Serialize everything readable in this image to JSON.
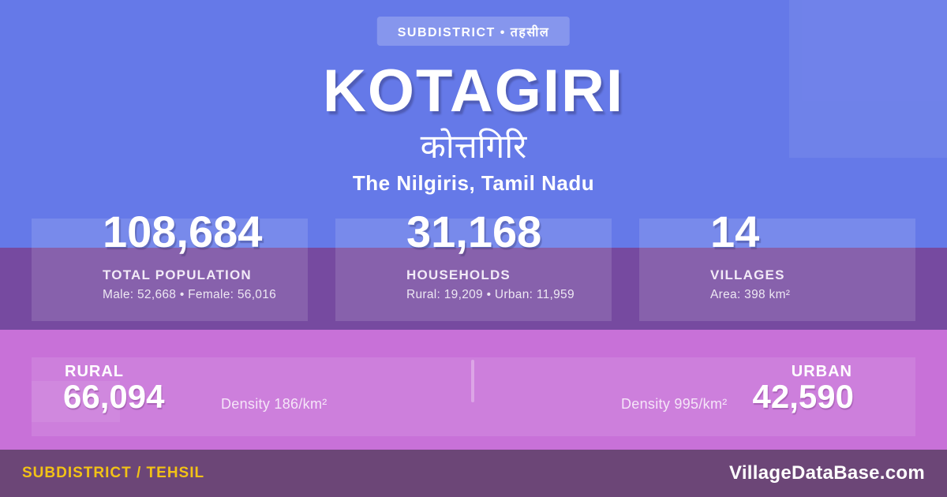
{
  "badge": {
    "label": "SUBDISTRICT • तहसील"
  },
  "header": {
    "title": "KOTAGIRI",
    "title_native": "कोत्तगिरि",
    "location": "The Nilgiris, Tamil Nadu"
  },
  "stats": [
    {
      "value": "108,684",
      "label": "TOTAL POPULATION",
      "detail": "Male: 52,668 • Female: 56,016"
    },
    {
      "value": "31,168",
      "label": "HOUSEHOLDS",
      "detail": "Rural: 19,209 • Urban: 11,959"
    },
    {
      "value": "14",
      "label": "VILLAGES",
      "detail": "Area: 398 km²"
    }
  ],
  "split": {
    "rural": {
      "label": "RURAL",
      "value": "66,094",
      "density": "Density 186/km²"
    },
    "urban": {
      "label": "URBAN",
      "value": "42,590",
      "density": "Density 995/km²"
    }
  },
  "footer": {
    "left": "SUBDISTRICT / TEHSIL",
    "right": "VillageDataBase.com"
  },
  "colors": {
    "background": "#6579e8",
    "band_purple": "#744aa0",
    "pink_band": "#c871d8",
    "footer_bar": "#6c4677",
    "accent_yellow": "#f2c216"
  }
}
